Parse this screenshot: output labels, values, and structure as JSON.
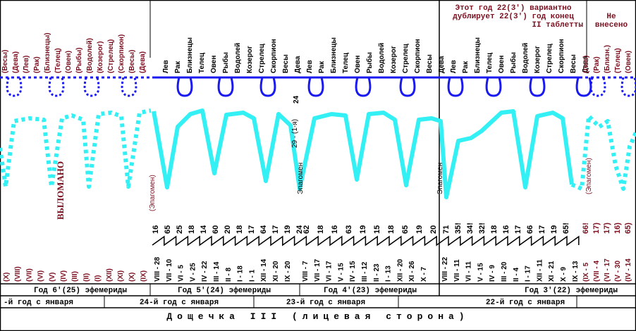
{
  "tablet_title": "Дощечка III (лицевая сторона)",
  "header_note": {
    "line1": "Этот год 22(3') вариантно",
    "line2": "дублирует 22(3') год конец",
    "line3": "II таблетты"
  },
  "not_entered": {
    "line1": "Не",
    "line2": "внесено"
  },
  "broken_label": "ВЫЛОМАНО",
  "top_labels": [
    "(Весы)",
    "(Дева)",
    "(Лев)",
    "(Рак)",
    "(Близнецы)",
    "(Телец)",
    "(Овен)",
    "(Рыбы)",
    "(Водолей)",
    "(Козерог)",
    "(Стрелец)",
    "(Скорпион)",
    "(Весы)",
    "(Дева)",
    "Лев",
    "Рак",
    "Близнецы",
    "Телец",
    "Овен",
    "Рыбы",
    "Водолей",
    "Козерог",
    "Стрелец",
    "Скорпион",
    "Весы",
    "Дева",
    "Лев",
    "Рак",
    "Близнецы",
    "Телец",
    "Овен",
    "Рыбы",
    "Водолей",
    "Козерог",
    "Стрелец",
    "Скорпион",
    "Весы",
    "Дева",
    "Лев",
    "Рак",
    "Близнецы",
    "Телец",
    "Овен",
    "Рыбы",
    "Водолей",
    "Козерог",
    "Стрелец",
    "Скорпион",
    "Весы",
    "Дева",
    "(Лев)",
    "(Рак)",
    "(Близн.)",
    "(Телец)",
    "(Овен)"
  ],
  "day_labels": [
    "16",
    "65",
    "25",
    "18",
    "14",
    "60",
    "20",
    "18",
    "17",
    "64",
    "17",
    "19",
    "24",
    "62",
    "18",
    "16",
    "63",
    "19",
    "15",
    "18",
    "65",
    "19",
    "20",
    "71",
    "35!",
    "34!",
    "32!",
    "18",
    "16",
    "17",
    "66",
    "17",
    "19",
    "65!",
    "66!",
    "17)",
    "17)",
    "16)",
    "65)"
  ],
  "date_labels": [
    "(X)",
    "(VIII)",
    "(VII)",
    "(VI)",
    "(V)",
    "(IV)",
    "(III)",
    "(II)",
    "(I)",
    "(XII)",
    "(XI)",
    "(X)",
    "(IX)",
    "VIII - 28",
    "VII - 10",
    "VI - 5",
    "V - 25",
    "IV - 22",
    "III - 14",
    "II - 8",
    "I - 18",
    "I - 1",
    "XII - 14",
    "XI - 20",
    "IX - 20",
    "VIII - 7",
    "VII - 17",
    "VI - 17",
    "V - 15",
    "IV - 15",
    "III - 12",
    "II - 23",
    "I - 13",
    "XII - 20",
    "XI - 26",
    "X - 7",
    "VIII - 22",
    "VII - 11",
    "VI - 11",
    "V - 15",
    "IV - 9",
    "III - 20",
    "II - 4",
    "I - 17",
    "XII - 11",
    "XI - 21",
    "X - 9",
    "IX - 13",
    "(IX - 5",
    "(VII - 4",
    "(VI - 17",
    "(V - 30",
    "(IV - 14"
  ],
  "curve_labels": {
    "epagomen": "Эпагомен",
    "epagomen_paren": "(Эпагомен)",
    "day24": "24",
    "note29": "29 - (1-я)"
  },
  "ephemeris_years": [
    "Год 6'(25) эфемериды",
    "Год 5'(24) эфемериды",
    "Год 4'(23) эфемериды",
    "Год 3'(22) эфемериды"
  ],
  "january_years": [
    "-й год с января",
    "24-й год с января",
    "23-й год с января",
    "22-й год с января"
  ],
  "colors": {
    "header_text": "#7a1020",
    "loops": "#1a1af0",
    "curve": "#33f0f5",
    "frame": "#000000"
  }
}
